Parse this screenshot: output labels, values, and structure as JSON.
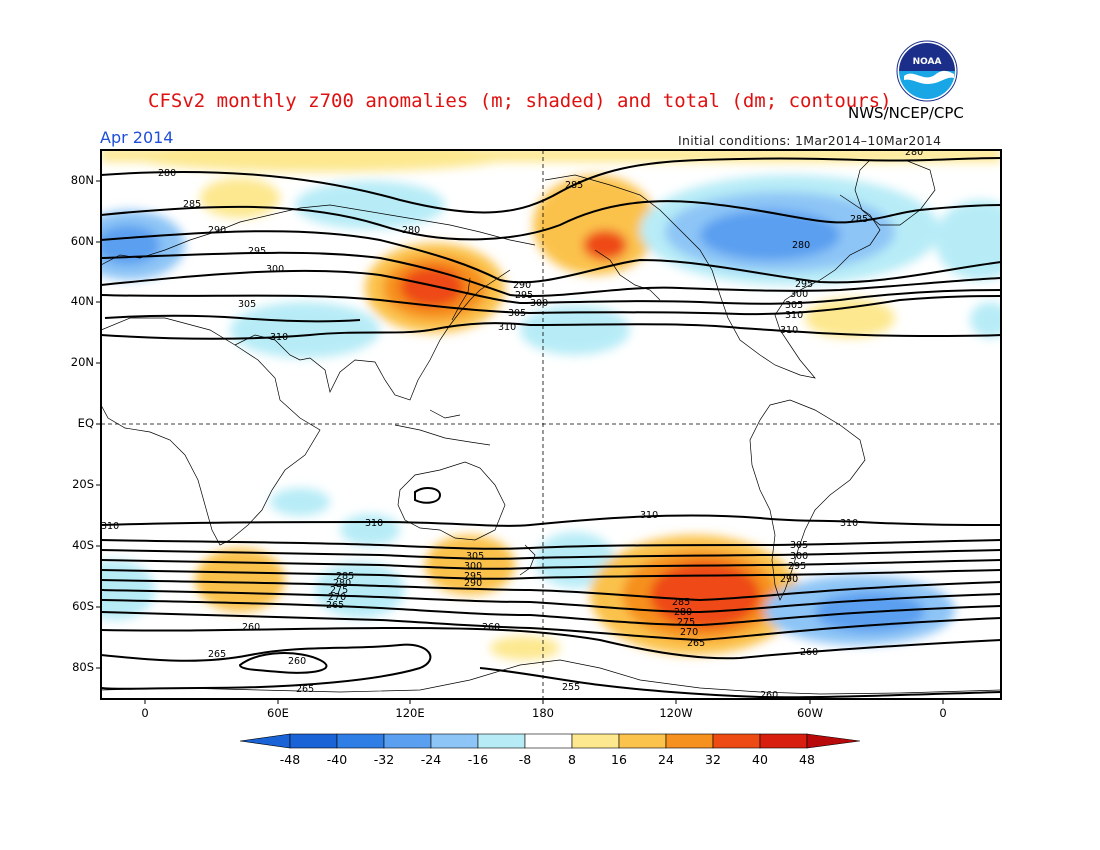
{
  "header": {
    "title": "CFSv2 monthly z700 anomalies (m; shaded) and total (dm; contours)",
    "agency": "NWS/NCEP/CPC",
    "month": "Apr 2014",
    "initial_conditions": "Initial conditions: 1Mar2014–10Mar2014",
    "logo_text": "NOAA"
  },
  "colors": {
    "title": "#e01010",
    "month": "#1f4fd8",
    "neg": [
      "#1a63d6",
      "#2f7ee6",
      "#5a9ff0",
      "#8dc5f6",
      "#b7ecf7"
    ],
    "pos": [
      "#fde88f",
      "#fbc24c",
      "#f6901f",
      "#ee4a13",
      "#d81f0f",
      "#b80a0a"
    ]
  },
  "axes": {
    "lat_labels": [
      "80N",
      "60N",
      "40N",
      "20N",
      "EQ",
      "20S",
      "40S",
      "60S",
      "80S"
    ],
    "lon_labels": [
      "0",
      "60E",
      "120E",
      "180",
      "120W",
      "60W",
      "0"
    ]
  },
  "colorbar": {
    "labels": [
      "-48",
      "-40",
      "-32",
      "-24",
      "-16",
      "-8",
      "8",
      "16",
      "24",
      "32",
      "40",
      "48"
    ]
  },
  "contour_labels": {
    "nh": [
      "280",
      "285",
      "290",
      "295",
      "300",
      "305",
      "310",
      "280",
      "285",
      "290",
      "295",
      "300",
      "305",
      "310",
      "280",
      "285",
      "280"
    ],
    "sh": [
      "310",
      "310",
      "310",
      "305",
      "300",
      "295",
      "290",
      "285",
      "280",
      "275",
      "270",
      "265",
      "260",
      "265",
      "260",
      "260",
      "255",
      "265",
      "260",
      "285",
      "280",
      "275",
      "270",
      "265",
      "305",
      "300",
      "295",
      "290",
      "260"
    ]
  }
}
